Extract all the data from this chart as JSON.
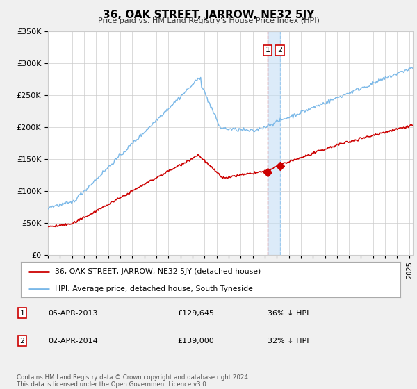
{
  "title": "36, OAK STREET, JARROW, NE32 5JY",
  "subtitle": "Price paid vs. HM Land Registry's House Price Index (HPI)",
  "hpi_color": "#7ab8e8",
  "price_color": "#cc0000",
  "background_color": "#f0f0f0",
  "plot_bg_color": "#ffffff",
  "grid_color": "#cccccc",
  "ylim": [
    0,
    350000
  ],
  "yticks": [
    0,
    50000,
    100000,
    150000,
    200000,
    250000,
    300000,
    350000
  ],
  "ytick_labels": [
    "£0",
    "£50K",
    "£100K",
    "£150K",
    "£200K",
    "£250K",
    "£300K",
    "£350K"
  ],
  "legend_label_price": "36, OAK STREET, JARROW, NE32 5JY (detached house)",
  "legend_label_hpi": "HPI: Average price, detached house, South Tyneside",
  "annotation1_num": "1",
  "annotation1_date": "05-APR-2013",
  "annotation1_price": "£129,645",
  "annotation1_pct": "36% ↓ HPI",
  "annotation2_num": "2",
  "annotation2_date": "02-APR-2014",
  "annotation2_price": "£139,000",
  "annotation2_pct": "32% ↓ HPI",
  "footer": "Contains HM Land Registry data © Crown copyright and database right 2024.\nThis data is licensed under the Open Government Licence v3.0.",
  "sale1_year": 2013.25,
  "sale1_price": 129645,
  "sale2_year": 2014.25,
  "sale2_price": 139000,
  "xlim_left": 1995,
  "xlim_right": 2025.3
}
